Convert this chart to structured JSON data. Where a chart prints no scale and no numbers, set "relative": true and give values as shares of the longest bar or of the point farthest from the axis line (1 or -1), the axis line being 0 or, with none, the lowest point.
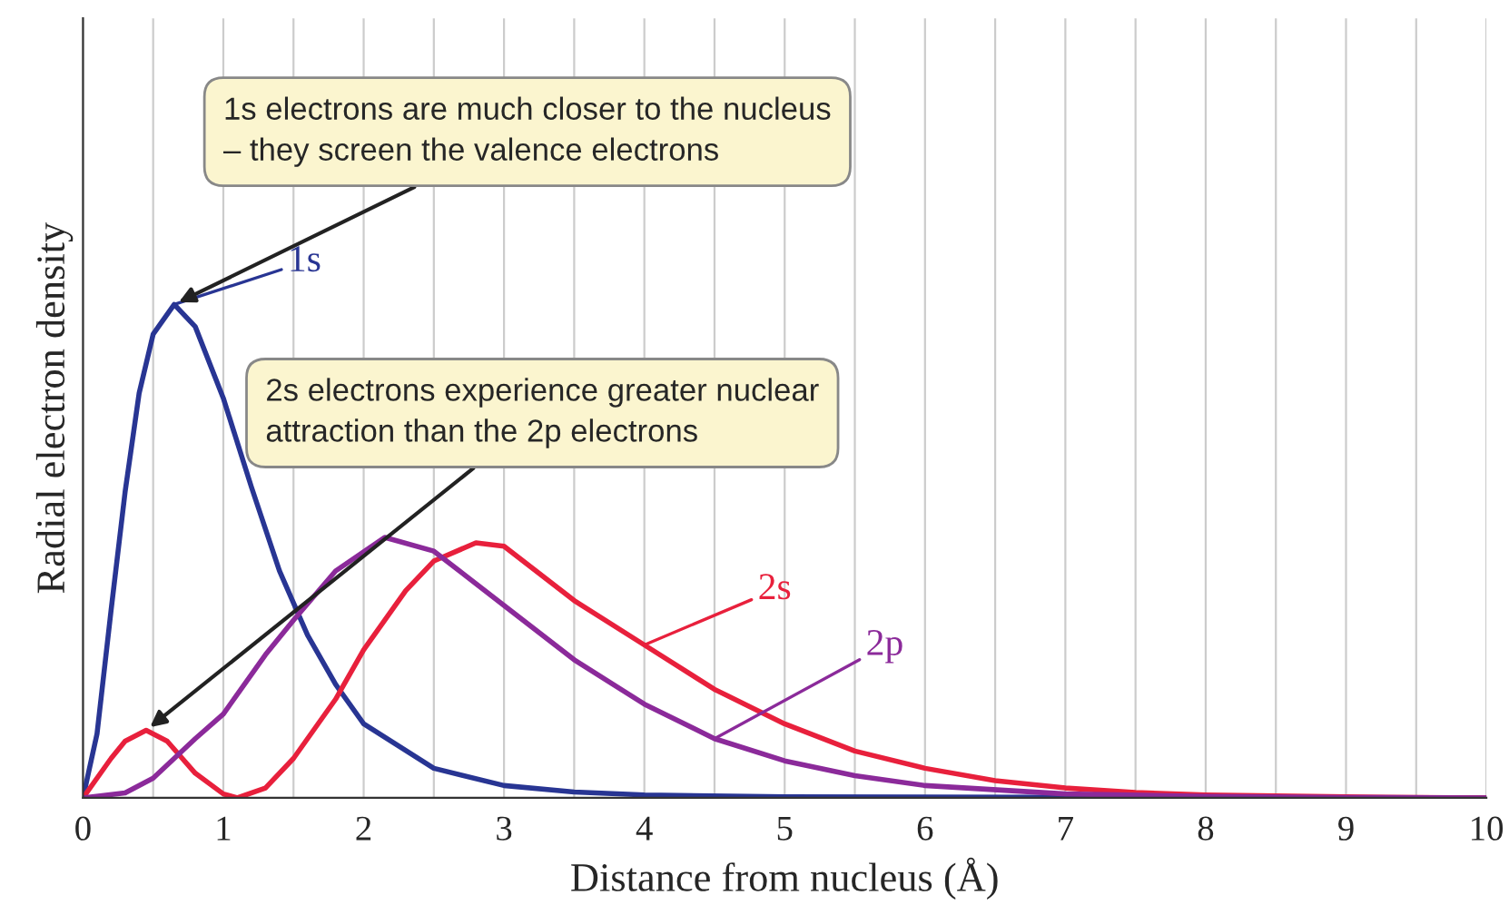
{
  "chart_data": {
    "type": "line",
    "relative": true,
    "xlabel": "Distance from nucleus (Å)",
    "ylabel": "Radial electron density",
    "xlim": [
      0,
      10
    ],
    "xticks": [
      0,
      1,
      2,
      3,
      4,
      5,
      6,
      7,
      8,
      9,
      10
    ],
    "grid": "x",
    "legend": false,
    "line_style": "solid",
    "marker": "none",
    "series": [
      {
        "name": "1s",
        "color": "#283593",
        "x": [
          0,
          0.1,
          0.2,
          0.3,
          0.4,
          0.5,
          0.65,
          0.8,
          1.0,
          1.2,
          1.4,
          1.6,
          1.8,
          2.0,
          2.5,
          3.0,
          3.5,
          4.0,
          5.0,
          10
        ],
        "values": [
          0,
          0.13,
          0.38,
          0.62,
          0.82,
          0.94,
          1,
          0.955,
          0.81,
          0.63,
          0.46,
          0.33,
          0.23,
          0.15,
          0.06,
          0.025,
          0.012,
          0.006,
          0.002,
          0
        ]
      },
      {
        "name": "2s",
        "color": "#e8203c",
        "x": [
          0,
          0.2,
          0.3,
          0.45,
          0.6,
          0.8,
          1.0,
          1.1,
          1.3,
          1.5,
          1.8,
          2.0,
          2.3,
          2.5,
          2.8,
          3.0,
          3.5,
          4.0,
          4.5,
          5.0,
          5.5,
          6.0,
          6.5,
          7.0,
          7.5,
          8.0,
          9.0,
          10
        ],
        "values": [
          0,
          0.08,
          0.115,
          0.137,
          0.115,
          0.05,
          0.008,
          0,
          0.02,
          0.08,
          0.2,
          0.3,
          0.42,
          0.48,
          0.517,
          0.51,
          0.4,
          0.31,
          0.22,
          0.15,
          0.095,
          0.06,
          0.035,
          0.02,
          0.011,
          0.006,
          0.002,
          0
        ]
      },
      {
        "name": "2p",
        "color": "#8b2a9a",
        "x": [
          0,
          0.3,
          0.5,
          0.8,
          1.0,
          1.3,
          1.5,
          1.8,
          2.15,
          2.5,
          3.0,
          3.5,
          4.0,
          4.5,
          5.0,
          5.5,
          6.0,
          7.0,
          8.0,
          9.0,
          10
        ],
        "values": [
          0,
          0.01,
          0.04,
          0.12,
          0.17,
          0.29,
          0.36,
          0.46,
          0.528,
          0.5,
          0.39,
          0.28,
          0.19,
          0.12,
          0.075,
          0.045,
          0.025,
          0.008,
          0.003,
          0.001,
          0
        ]
      }
    ],
    "annotations": [
      {
        "text": "1s electrons are much closer to the nucleus\n– they screen the valence electrons",
        "x": 0.65,
        "y": 1
      },
      {
        "text": "2s electrons experience greater nuclear\nattraction than the 2p electrons",
        "x": 0.45,
        "y": 0.137
      }
    ]
  }
}
